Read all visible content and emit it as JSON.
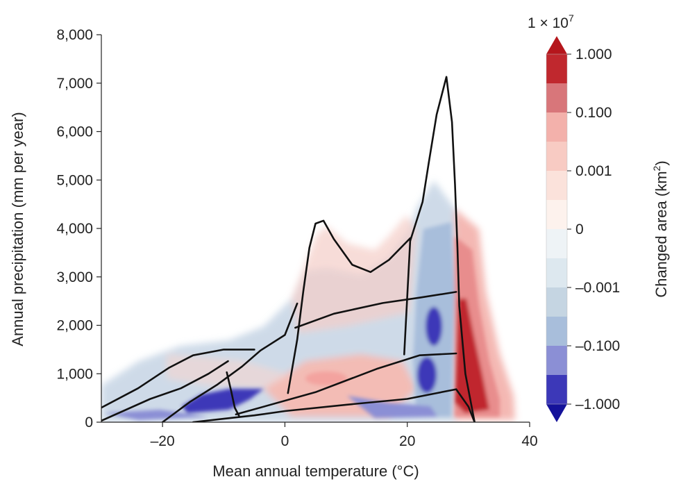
{
  "chart_data": {
    "type": "heatmap",
    "title": "",
    "xlabel": "Mean annual temperature (°C)",
    "ylabel": "Annual precipitation (mm per year)",
    "xlim": [
      -30,
      40
    ],
    "ylim": [
      0,
      8000
    ],
    "x_ticks": [
      -20,
      0,
      20,
      40
    ],
    "x_tick_labels": [
      "–20",
      "0",
      "20",
      "40"
    ],
    "y_ticks": [
      0,
      1000,
      2000,
      3000,
      4000,
      5000,
      6000,
      7000,
      8000
    ],
    "y_tick_labels": [
      "0",
      "1,000",
      "2,000",
      "3,000",
      "4,000",
      "5,000",
      "6,000",
      "7,000",
      "8,000"
    ],
    "grid": false,
    "colorbar": {
      "label": "Changed area (km²)",
      "label_main": "Changed area (km",
      "label_sup": "2",
      "label_close": ")",
      "scale_label_base": "1 × 10",
      "scale_label_exp": "7",
      "tick_labels": [
        "1.000",
        "0.100",
        "0.001",
        "0",
        "–0.001",
        "–0.100",
        "–1.000"
      ],
      "tick_values": [
        1.0,
        0.1,
        0.001,
        0,
        -0.001,
        -0.1,
        -1.0
      ],
      "colors_top_to_bottom": [
        "#c0282e",
        "#d8767a",
        "#f3b1ab",
        "#f8cbc3",
        "#fbe2db",
        "#fdf2ed",
        "#eef3f6",
        "#dde8ef",
        "#c5d5e2",
        "#a8bedb",
        "#8b8fd5",
        "#3c38b8"
      ],
      "extend_max_color": "#b5161c",
      "extend_min_color": "#14129a"
    },
    "biome_boundaries": [
      {
        "x": [
          -30,
          -24,
          -19,
          -15,
          -10,
          -5
        ],
        "y": [
          300,
          700,
          1120,
          1380,
          1500,
          1500
        ]
      },
      {
        "x": [
          -30,
          -22,
          -17,
          -12.5,
          -9.3
        ],
        "y": [
          30,
          480,
          700,
          1000,
          1260
        ]
      },
      {
        "x": [
          -20,
          -15.5,
          -11,
          -7,
          -4,
          0,
          2
        ],
        "y": [
          0,
          420,
          780,
          1150,
          1480,
          1800,
          2450
        ]
      },
      {
        "x": [
          -9.5,
          -8.8,
          -8.2,
          -7.5
        ],
        "y": [
          1030,
          650,
          300,
          130
        ]
      },
      {
        "x": [
          -15,
          -10,
          -5,
          0,
          10,
          20,
          28,
          30,
          31
        ],
        "y": [
          0,
          70,
          140,
          230,
          360,
          480,
          680,
          320,
          0
        ]
      },
      {
        "x": [
          -8,
          5,
          15,
          22,
          28
        ],
        "y": [
          160,
          620,
          1100,
          1380,
          1420
        ]
      },
      {
        "x": [
          0.5,
          2,
          3,
          4,
          5,
          6.3,
          8,
          11,
          14,
          17,
          20.5,
          20,
          19.5
        ],
        "y": [
          600,
          1700,
          2700,
          3600,
          4100,
          4160,
          3780,
          3250,
          3100,
          3350,
          3800,
          2600,
          1400
        ]
      },
      {
        "x": [
          1.7,
          8,
          16,
          22,
          28
        ],
        "y": [
          1950,
          2240,
          2460,
          2570,
          2690
        ]
      },
      {
        "x": [
          20.5,
          22.5,
          23.5,
          24.8,
          26.4,
          27.3,
          27.8,
          28.2,
          28.5,
          29.5,
          31
        ],
        "y": [
          3750,
          4550,
          5350,
          6350,
          7130,
          6200,
          4900,
          3600,
          2400,
          1000,
          0
        ]
      }
    ]
  }
}
